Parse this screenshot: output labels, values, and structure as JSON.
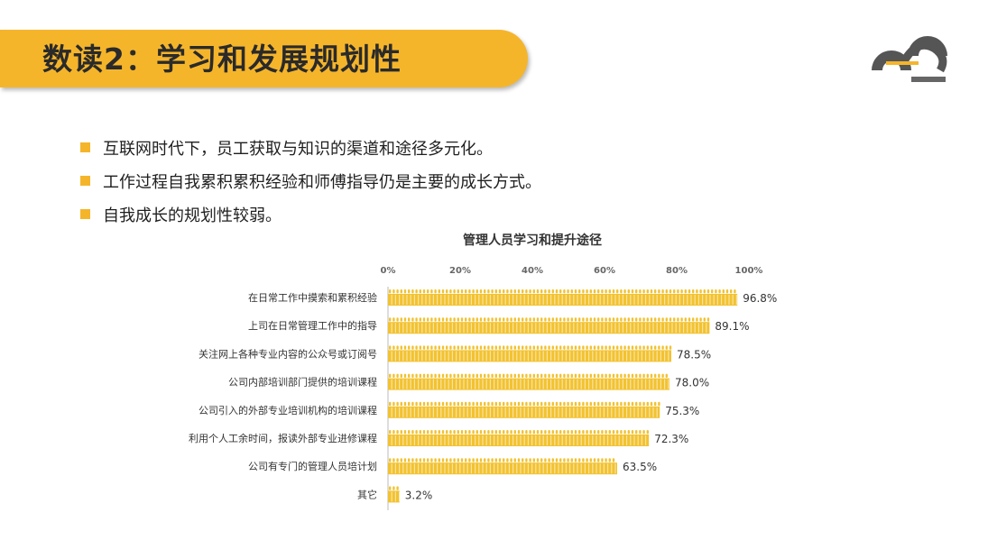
{
  "header": {
    "title": "数读2：学习和发展规划性"
  },
  "bullets": [
    "互联网时代下，员工获取与知识的渠道和途径多元化。",
    "工作过程自我累积累积经验和师傅指导仍是主要的成长方式。",
    "自我成长的规划性较弱。"
  ],
  "colors": {
    "accent": "#F5B52B",
    "bar": "#F2C230",
    "logo_dark": "#555555"
  },
  "chart_data": {
    "type": "bar",
    "orientation": "horizontal",
    "title": "管理人员学习和提升途径",
    "categories": [
      "在日常工作中摸索和累积经验",
      "上司在日常管理工作中的指导",
      "关注网上各种专业内容的公众号或订阅号",
      "公司内部培训部门提供的培训课程",
      "公司引入的外部专业培训机构的培训课程",
      "利用个人工余时间，报读外部专业进修课程",
      "公司有专门的管理人员培计划",
      "其它"
    ],
    "values": [
      96.8,
      89.1,
      78.5,
      78.0,
      75.3,
      72.3,
      63.5,
      3.2
    ],
    "data_labels": [
      "96.8%",
      "89.1%",
      "78.5%",
      "78.0%",
      "75.3%",
      "72.3%",
      "63.5%",
      "3.2%"
    ],
    "xlim": [
      0,
      100
    ],
    "ticks": [
      0,
      20,
      40,
      60,
      80,
      100
    ],
    "tick_labels": [
      "0%",
      "20%",
      "40%",
      "60%",
      "80%",
      "100%"
    ],
    "xaxis_position": "top",
    "grid": false,
    "legend": "none"
  }
}
